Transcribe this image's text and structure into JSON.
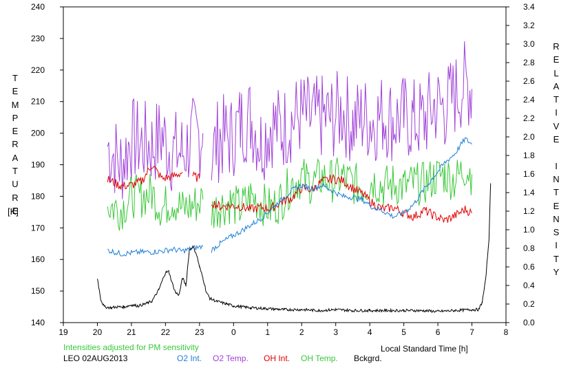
{
  "chart_data": {
    "type": "line",
    "ylabel_left": "TEMPERATURE",
    "ylabel_left_unit": "[K]",
    "ylabel_right": "RELATIVE INTENSITY",
    "xlabel": "Local Standard Time [h]",
    "note": "Intensities adjusted for PM sensitivity",
    "station_date": "LEO 02AUG2013",
    "xlim": [
      19,
      32
    ],
    "x_ticks": [
      "19",
      "20",
      "21",
      "22",
      "23",
      "0",
      "1",
      "2",
      "3",
      "4",
      "5",
      "6",
      "7",
      "8"
    ],
    "ylim_left": [
      140,
      240
    ],
    "y_ticks_left": [
      "140",
      "150",
      "160",
      "170",
      "180",
      "190",
      "200",
      "210",
      "220",
      "230",
      "240"
    ],
    "ylim_right": [
      0.0,
      3.4
    ],
    "y_ticks_right": [
      "0.0",
      "0.2",
      "0.4",
      "0.6",
      "0.8",
      "1.0",
      "1.2",
      "1.4",
      "1.6",
      "1.8",
      "2.0",
      "2.2",
      "2.4",
      "2.6",
      "2.8",
      "3.0",
      "3.2",
      "3.4"
    ],
    "grid": false,
    "legend": [
      {
        "name": "O2 Int.",
        "color": "#1c7fd8"
      },
      {
        "name": "O2 Temp.",
        "color": "#a040d8"
      },
      {
        "name": "OH Int.",
        "color": "#e00000"
      },
      {
        "name": "OH Temp.",
        "color": "#38c838"
      },
      {
        "name": "Bckgrd.",
        "color": "#000000"
      }
    ],
    "note_color": "#38c838",
    "series": [
      {
        "name": "O2 Temp.",
        "axis": "left",
        "color": "#a040d8",
        "segments": [
          {
            "x": [
              20.3,
              20.7,
              21.0,
              21.3,
              21.6,
              21.9,
              22.2,
              22.5,
              22.8,
              23.1
            ],
            "y": [
              196,
              190,
              198,
              197,
              196,
              199,
              194,
              194,
              198,
              200
            ]
          },
          {
            "x": [
              23.35,
              23.6,
              23.9,
              24.2,
              24.5,
              24.8,
              25.1,
              25.4,
              25.7,
              26.0,
              26.3,
              26.6,
              26.9,
              27.2,
              27.5,
              27.8,
              28.1,
              28.4,
              28.7,
              29.0,
              29.3,
              29.6,
              29.9,
              30.2,
              30.5,
              30.8,
              31.0
            ],
            "y": [
              193,
              199,
              198,
              203,
              205,
              197,
              203,
              201,
              204,
              206,
              204,
              205,
              205,
              207,
              203,
              205,
              204,
              206,
              204,
              205,
              204,
              204,
              209,
              208,
              212,
              216,
              214
            ]
          }
        ]
      },
      {
        "name": "OH Temp.",
        "axis": "left",
        "color": "#38c838",
        "segments": [
          {
            "x": [
              20.3,
              20.7,
              21.0,
              21.3,
              21.6,
              21.9,
              22.2,
              22.5,
              22.8,
              23.1
            ],
            "y": [
              177,
              176,
              180,
              180,
              181,
              176,
              179,
              176,
              177,
              179
            ]
          },
          {
            "x": [
              23.35,
              23.6,
              23.9,
              24.2,
              24.5,
              24.8,
              25.1,
              25.4,
              25.7,
              26.0,
              26.3,
              26.6,
              26.9,
              27.2,
              27.5,
              27.8,
              28.1,
              28.4,
              28.7,
              29.0,
              29.3,
              29.6,
              29.9,
              30.2,
              30.5,
              30.8,
              31.0
            ],
            "y": [
              175,
              177,
              178,
              176,
              180,
              178,
              176,
              179,
              184,
              186,
              184,
              186,
              185,
              186,
              184,
              183,
              185,
              183,
              184,
              183,
              184,
              184,
              186,
              187,
              185,
              189,
              187
            ]
          }
        ]
      },
      {
        "name": "OH Int.",
        "axis": "right",
        "color": "#e00000",
        "segments": [
          {
            "x": [
              20.3,
              20.7,
              21.0,
              21.3,
              21.6,
              21.9,
              22.2,
              22.5
            ],
            "y": [
              1.54,
              1.47,
              1.48,
              1.52,
              1.7,
              1.55,
              1.57,
              1.62
            ]
          },
          {
            "x": [
              22.8,
              23.0
            ],
            "y": [
              1.58,
              1.55
            ]
          },
          {
            "x": [
              23.35,
              23.6,
              23.9,
              24.2,
              24.5,
              24.8,
              25.1,
              25.4,
              25.7,
              26.0,
              26.3,
              26.6,
              26.9,
              27.2,
              27.5,
              27.8,
              28.1,
              28.4,
              28.7,
              29.0,
              29.3,
              29.6,
              29.9,
              30.2,
              30.5,
              30.8,
              31.0
            ],
            "y": [
              1.3,
              1.25,
              1.26,
              1.25,
              1.22,
              1.24,
              1.23,
              1.3,
              1.34,
              1.45,
              1.43,
              1.52,
              1.55,
              1.53,
              1.45,
              1.38,
              1.28,
              1.22,
              1.24,
              1.18,
              1.14,
              1.21,
              1.15,
              1.1,
              1.15,
              1.22,
              1.18
            ]
          }
        ]
      },
      {
        "name": "O2 Int.",
        "axis": "right",
        "color": "#1c7fd8",
        "segments": [
          {
            "x": [
              20.3,
              20.7,
              21.0,
              21.3,
              21.6,
              21.9,
              22.2,
              22.5,
              22.8,
              23.1
            ],
            "y": [
              0.78,
              0.74,
              0.75,
              0.76,
              0.76,
              0.77,
              0.79,
              0.77,
              0.8,
              0.82
            ]
          },
          {
            "x": [
              23.35,
              23.6,
              23.9,
              24.2,
              24.5,
              24.8,
              25.1,
              25.4,
              25.7,
              26.0,
              26.3,
              26.6,
              26.9,
              27.2,
              27.5,
              27.8,
              28.1,
              28.4,
              28.7,
              29.0,
              29.3,
              29.6,
              29.9,
              30.2,
              30.5,
              30.8,
              31.0
            ],
            "y": [
              0.78,
              0.85,
              0.92,
              0.98,
              1.05,
              1.12,
              1.22,
              1.32,
              1.42,
              1.48,
              1.44,
              1.48,
              1.42,
              1.36,
              1.35,
              1.32,
              1.24,
              1.2,
              1.14,
              1.18,
              1.28,
              1.44,
              1.58,
              1.72,
              1.82,
              1.98,
              1.92
            ]
          }
        ]
      },
      {
        "name": "Bckgrd.",
        "axis": "right",
        "color": "#000000",
        "segments": [
          {
            "x": [
              20.0,
              20.1,
              20.2,
              20.4,
              20.6,
              20.8,
              21.0,
              21.2,
              21.4,
              21.6,
              21.8,
              22.0,
              22.1,
              22.2,
              22.3,
              22.4,
              22.5,
              22.6,
              22.7,
              22.8,
              22.9,
              23.0,
              23.1,
              23.2,
              23.3,
              23.5,
              23.8,
              24.0,
              24.5,
              25.0,
              25.5,
              26.0,
              26.5,
              27.0,
              27.5,
              28.0,
              28.5,
              29.0,
              29.5,
              30.0,
              30.5,
              31.0,
              31.2,
              31.3,
              31.4,
              31.5,
              31.55
            ],
            "y": [
              0.48,
              0.25,
              0.17,
              0.16,
              0.17,
              0.17,
              0.19,
              0.18,
              0.2,
              0.23,
              0.35,
              0.54,
              0.55,
              0.42,
              0.32,
              0.3,
              0.48,
              0.4,
              0.78,
              0.82,
              0.75,
              0.6,
              0.48,
              0.33,
              0.26,
              0.23,
              0.2,
              0.18,
              0.16,
              0.15,
              0.14,
              0.14,
              0.13,
              0.14,
              0.13,
              0.13,
              0.13,
              0.13,
              0.13,
              0.12,
              0.13,
              0.14,
              0.14,
              0.22,
              0.45,
              0.9,
              1.5
            ]
          }
        ]
      }
    ]
  }
}
